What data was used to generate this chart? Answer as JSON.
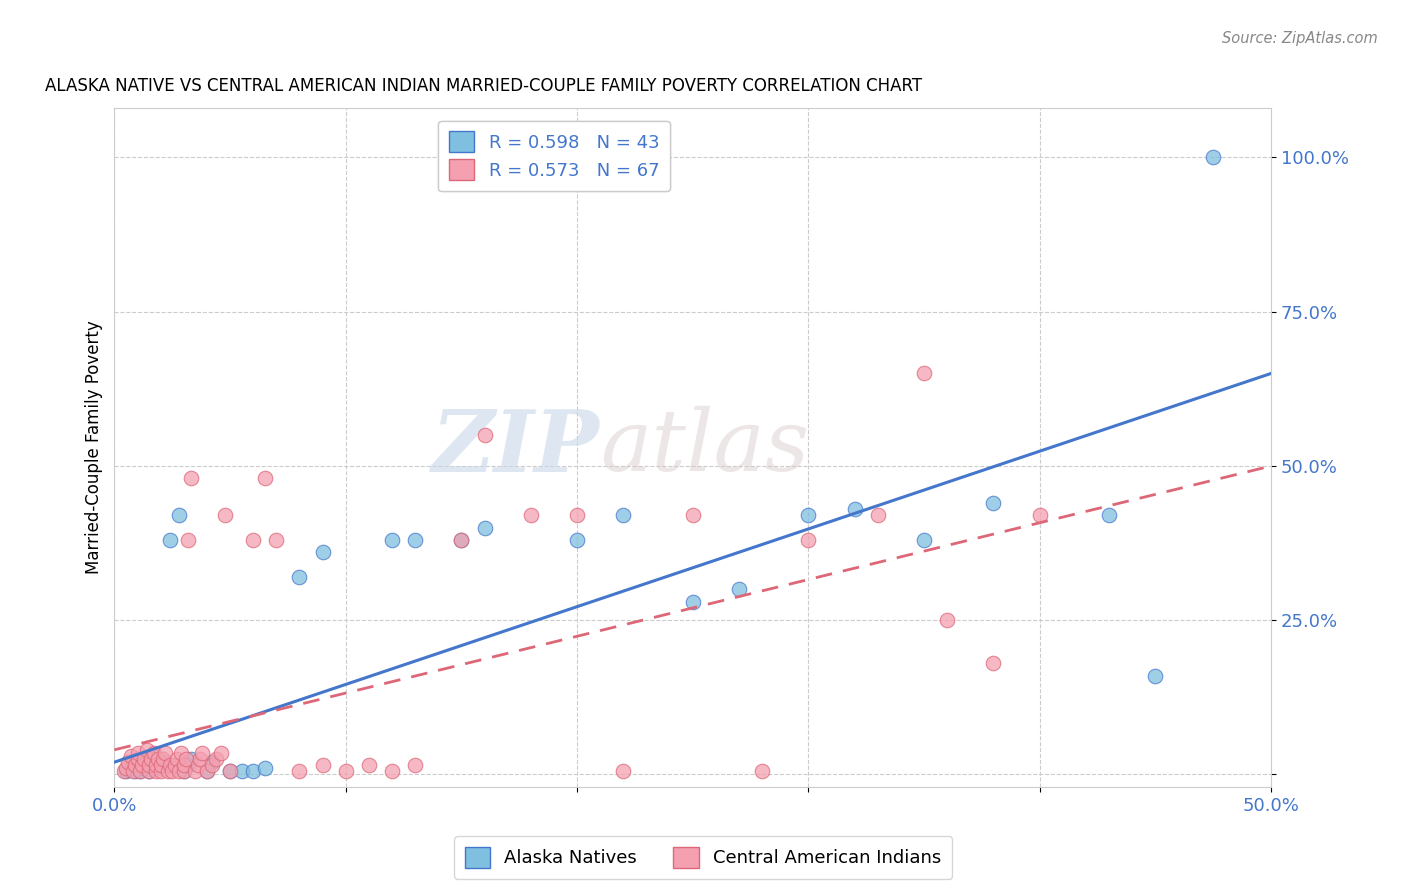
{
  "title": "ALASKA NATIVE VS CENTRAL AMERICAN INDIAN MARRIED-COUPLE FAMILY POVERTY CORRELATION CHART",
  "source": "Source: ZipAtlas.com",
  "ylabel": "Married-Couple Family Poverty",
  "xlim": [
    0.0,
    0.5
  ],
  "ylim": [
    -0.02,
    1.08
  ],
  "xticks": [
    0.0,
    0.1,
    0.2,
    0.3,
    0.4,
    0.5
  ],
  "yticks": [
    0.0,
    0.25,
    0.5,
    0.75,
    1.0
  ],
  "xticklabels": [
    "0.0%",
    "",
    "",
    "",
    "",
    "50.0%"
  ],
  "yticklabels": [
    "",
    "25.0%",
    "50.0%",
    "75.0%",
    "100.0%"
  ],
  "legend_labels": [
    "Alaska Natives",
    "Central American Indians"
  ],
  "R_blue": 0.598,
  "N_blue": 43,
  "R_pink": 0.573,
  "N_pink": 67,
  "watermark_zip": "ZIP",
  "watermark_atlas": "atlas",
  "blue_color": "#7fbfdf",
  "pink_color": "#f4a0b0",
  "blue_line_color": "#4477cc",
  "pink_line_color": "#dd6677",
  "blue_scatter": [
    [
      0.005,
      0.005
    ],
    [
      0.007,
      0.01
    ],
    [
      0.008,
      0.02
    ],
    [
      0.009,
      0.005
    ],
    [
      0.01,
      0.015
    ],
    [
      0.011,
      0.005
    ],
    [
      0.012,
      0.02
    ],
    [
      0.013,
      0.01
    ],
    [
      0.015,
      0.025
    ],
    [
      0.015,
      0.005
    ],
    [
      0.016,
      0.015
    ],
    [
      0.017,
      0.03
    ],
    [
      0.018,
      0.01
    ],
    [
      0.02,
      0.015
    ],
    [
      0.022,
      0.02
    ],
    [
      0.024,
      0.38
    ],
    [
      0.028,
      0.42
    ],
    [
      0.03,
      0.005
    ],
    [
      0.032,
      0.015
    ],
    [
      0.033,
      0.025
    ],
    [
      0.04,
      0.005
    ],
    [
      0.042,
      0.02
    ],
    [
      0.05,
      0.005
    ],
    [
      0.055,
      0.005
    ],
    [
      0.06,
      0.005
    ],
    [
      0.065,
      0.01
    ],
    [
      0.08,
      0.32
    ],
    [
      0.09,
      0.36
    ],
    [
      0.12,
      0.38
    ],
    [
      0.13,
      0.38
    ],
    [
      0.15,
      0.38
    ],
    [
      0.16,
      0.4
    ],
    [
      0.2,
      0.38
    ],
    [
      0.22,
      0.42
    ],
    [
      0.25,
      0.28
    ],
    [
      0.27,
      0.3
    ],
    [
      0.3,
      0.42
    ],
    [
      0.32,
      0.43
    ],
    [
      0.35,
      0.38
    ],
    [
      0.38,
      0.44
    ],
    [
      0.43,
      0.42
    ],
    [
      0.45,
      0.16
    ],
    [
      0.475,
      1.0
    ]
  ],
  "pink_scatter": [
    [
      0.004,
      0.005
    ],
    [
      0.005,
      0.01
    ],
    [
      0.006,
      0.02
    ],
    [
      0.007,
      0.03
    ],
    [
      0.008,
      0.005
    ],
    [
      0.009,
      0.015
    ],
    [
      0.01,
      0.025
    ],
    [
      0.01,
      0.035
    ],
    [
      0.011,
      0.005
    ],
    [
      0.012,
      0.015
    ],
    [
      0.013,
      0.025
    ],
    [
      0.014,
      0.04
    ],
    [
      0.015,
      0.005
    ],
    [
      0.015,
      0.015
    ],
    [
      0.016,
      0.025
    ],
    [
      0.017,
      0.035
    ],
    [
      0.018,
      0.005
    ],
    [
      0.018,
      0.015
    ],
    [
      0.019,
      0.025
    ],
    [
      0.02,
      0.005
    ],
    [
      0.02,
      0.015
    ],
    [
      0.021,
      0.025
    ],
    [
      0.022,
      0.035
    ],
    [
      0.023,
      0.005
    ],
    [
      0.024,
      0.015
    ],
    [
      0.025,
      0.005
    ],
    [
      0.026,
      0.015
    ],
    [
      0.027,
      0.025
    ],
    [
      0.028,
      0.005
    ],
    [
      0.029,
      0.035
    ],
    [
      0.03,
      0.005
    ],
    [
      0.03,
      0.015
    ],
    [
      0.031,
      0.025
    ],
    [
      0.032,
      0.38
    ],
    [
      0.033,
      0.48
    ],
    [
      0.035,
      0.005
    ],
    [
      0.036,
      0.015
    ],
    [
      0.037,
      0.025
    ],
    [
      0.038,
      0.035
    ],
    [
      0.04,
      0.005
    ],
    [
      0.042,
      0.015
    ],
    [
      0.044,
      0.025
    ],
    [
      0.046,
      0.035
    ],
    [
      0.048,
      0.42
    ],
    [
      0.05,
      0.005
    ],
    [
      0.06,
      0.38
    ],
    [
      0.065,
      0.48
    ],
    [
      0.07,
      0.38
    ],
    [
      0.08,
      0.005
    ],
    [
      0.09,
      0.015
    ],
    [
      0.1,
      0.005
    ],
    [
      0.11,
      0.015
    ],
    [
      0.12,
      0.005
    ],
    [
      0.13,
      0.015
    ],
    [
      0.15,
      0.38
    ],
    [
      0.16,
      0.55
    ],
    [
      0.18,
      0.42
    ],
    [
      0.2,
      0.42
    ],
    [
      0.22,
      0.005
    ],
    [
      0.25,
      0.42
    ],
    [
      0.28,
      0.005
    ],
    [
      0.3,
      0.38
    ],
    [
      0.33,
      0.42
    ],
    [
      0.35,
      0.65
    ],
    [
      0.36,
      0.25
    ],
    [
      0.38,
      0.18
    ],
    [
      0.4,
      0.42
    ]
  ]
}
